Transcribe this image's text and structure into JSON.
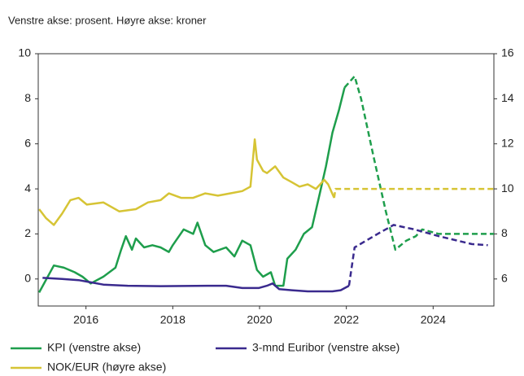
{
  "chart_data": {
    "type": "line",
    "subtitle": "Venstre akse: prosent.  Høyre akse: kroner",
    "xlim": [
      2014.9,
      2025.4
    ],
    "xticks": [
      2016,
      2018,
      2020,
      2022,
      2024
    ],
    "ylim": [
      -1.2,
      10
    ],
    "yticks": [
      0,
      2,
      4,
      6,
      8,
      10
    ],
    "y2lim": [
      4.8,
      16
    ],
    "y2ticks": [
      6,
      8,
      10,
      12,
      14,
      16
    ],
    "series": [
      {
        "name": "KPI (venstre akse)",
        "color": "#1e9e4c",
        "dashed_from": 2022.19,
        "x": [
          2014.92,
          2015.26,
          2015.49,
          2015.74,
          2015.92,
          2016.11,
          2016.4,
          2016.68,
          2016.81,
          2016.92,
          2017.06,
          2017.15,
          2017.34,
          2017.53,
          2017.72,
          2017.91,
          2018.0,
          2018.25,
          2018.47,
          2018.57,
          2018.75,
          2018.94,
          2019.23,
          2019.42,
          2019.6,
          2019.79,
          2019.94,
          2020.08,
          2020.26,
          2020.36,
          2020.55,
          2020.64,
          2020.83,
          2021.02,
          2021.21,
          2021.4,
          2021.53,
          2021.68,
          2021.83,
          2021.96,
          2022.19,
          2022.34,
          2022.62,
          2022.91,
          2023.13,
          2023.38,
          2023.6,
          2023.75,
          2024.13,
          2025.4
        ],
        "values": [
          -0.6,
          0.6,
          0.5,
          0.3,
          0.1,
          -0.2,
          0.1,
          0.5,
          1.3,
          1.9,
          1.3,
          1.8,
          1.4,
          1.5,
          1.4,
          1.2,
          1.5,
          2.2,
          2.0,
          2.5,
          1.5,
          1.2,
          1.4,
          1.0,
          1.7,
          1.5,
          0.4,
          0.1,
          0.3,
          -0.3,
          -0.3,
          0.9,
          1.3,
          2.0,
          2.3,
          3.9,
          5.0,
          6.5,
          7.5,
          8.5,
          9.0,
          8.0,
          5.5,
          3.0,
          1.3,
          1.7,
          1.9,
          2.2,
          2.0,
          2.0
        ]
      },
      {
        "name": "3-mnd Euribor (venstre akse)",
        "color": "#3a2a8e",
        "dashed_from": 2022.19,
        "x": [
          2015.0,
          2015.45,
          2015.83,
          2016.11,
          2016.4,
          2016.96,
          2017.72,
          2018.85,
          2019.23,
          2019.6,
          2019.98,
          2020.17,
          2020.3,
          2020.45,
          2020.74,
          2021.11,
          2021.68,
          2021.87,
          2022.06,
          2022.19,
          2022.72,
          2023.09,
          2023.57,
          2024.13,
          2024.89,
          2025.26
        ],
        "values": [
          0.05,
          0.0,
          -0.05,
          -0.15,
          -0.25,
          -0.3,
          -0.32,
          -0.3,
          -0.3,
          -0.4,
          -0.4,
          -0.3,
          -0.2,
          -0.45,
          -0.5,
          -0.55,
          -0.55,
          -0.5,
          -0.3,
          1.4,
          2.0,
          2.4,
          2.2,
          1.9,
          1.55,
          1.5
        ]
      },
      {
        "name": "NOK/EUR (høyre akse)",
        "color": "#d6c435",
        "axis": "y2",
        "dashed_from": 2021.75,
        "x": [
          2014.92,
          2015.08,
          2015.26,
          2015.45,
          2015.64,
          2015.83,
          2016.02,
          2016.4,
          2016.77,
          2017.15,
          2017.43,
          2017.72,
          2017.91,
          2018.19,
          2018.47,
          2018.75,
          2019.04,
          2019.32,
          2019.6,
          2019.79,
          2019.89,
          2019.94,
          2020.08,
          2020.17,
          2020.36,
          2020.55,
          2020.74,
          2020.92,
          2021.11,
          2021.3,
          2021.49,
          2021.58,
          2021.72,
          2021.75,
          2025.4
        ],
        "values": [
          9.1,
          8.7,
          8.4,
          8.9,
          9.5,
          9.6,
          9.3,
          9.4,
          9.0,
          9.1,
          9.4,
          9.5,
          9.8,
          9.6,
          9.6,
          9.8,
          9.7,
          9.8,
          9.9,
          10.1,
          12.2,
          11.3,
          10.8,
          10.7,
          11.0,
          10.5,
          10.3,
          10.1,
          10.2,
          10.0,
          10.4,
          10.2,
          9.6,
          10.0,
          10.0
        ]
      }
    ]
  }
}
